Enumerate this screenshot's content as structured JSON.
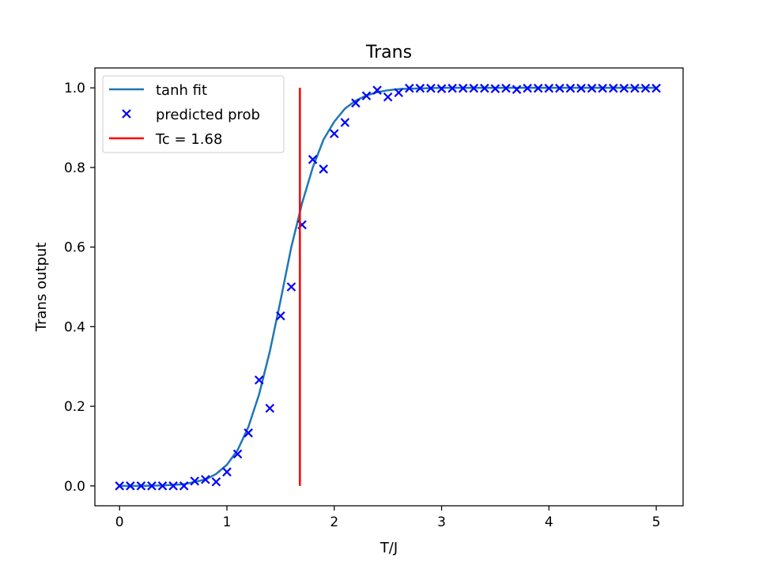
{
  "chart_data": {
    "type": "scatter",
    "title": "Trans",
    "xlabel": "T/J",
    "ylabel": "Trans output",
    "xlim": [
      -0.23,
      5.25
    ],
    "ylim": [
      -0.05,
      1.05
    ],
    "xticks": [
      0,
      1,
      2,
      3,
      4,
      5
    ],
    "xtick_labels": [
      "0",
      "1",
      "2",
      "3",
      "4",
      "5"
    ],
    "yticks": [
      0.0,
      0.2,
      0.4,
      0.6,
      0.8,
      1.0
    ],
    "ytick_labels": [
      "0.0",
      "0.2",
      "0.4",
      "0.6",
      "0.8",
      "1.0"
    ],
    "grid": false,
    "legend_position": "upper-left",
    "series": [
      {
        "name": "predicted prob",
        "kind": "scatter",
        "marker": "x",
        "color": "#0000ff",
        "x": [
          0.0,
          0.1,
          0.2,
          0.3,
          0.4,
          0.5,
          0.6,
          0.7,
          0.8,
          0.9,
          1.0,
          1.1,
          1.2,
          1.3,
          1.4,
          1.5,
          1.6,
          1.7,
          1.8,
          1.9,
          2.0,
          2.1,
          2.2,
          2.3,
          2.4,
          2.5,
          2.6,
          2.7,
          2.8,
          2.9,
          3.0,
          3.1,
          3.2,
          3.3,
          3.4,
          3.5,
          3.6,
          3.7,
          3.8,
          3.9,
          4.0,
          4.1,
          4.2,
          4.3,
          4.4,
          4.5,
          4.6,
          4.7,
          4.8,
          4.9,
          5.0
        ],
        "y": [
          0.0,
          0.0,
          0.0,
          0.0,
          0.0,
          0.0,
          0.0,
          0.012,
          0.016,
          0.01,
          0.035,
          0.08,
          0.133,
          0.266,
          0.195,
          0.427,
          0.5,
          0.656,
          0.82,
          0.796,
          0.885,
          0.913,
          0.962,
          0.98,
          0.994,
          0.977,
          0.988,
          0.999,
          0.999,
          0.999,
          0.998,
          0.999,
          0.999,
          0.999,
          0.999,
          0.998,
          0.999,
          0.996,
          0.999,
          0.999,
          0.999,
          0.999,
          0.999,
          0.999,
          0.999,
          0.999,
          0.999,
          0.999,
          0.999,
          0.999,
          0.999
        ]
      },
      {
        "name": "tanh fit",
        "kind": "line",
        "color": "#1f77b4",
        "x": [
          0.0,
          0.2,
          0.4,
          0.6,
          0.8,
          0.9,
          1.0,
          1.1,
          1.2,
          1.3,
          1.4,
          1.5,
          1.6,
          1.7,
          1.8,
          1.9,
          2.0,
          2.1,
          2.2,
          2.3,
          2.4,
          2.5,
          2.6,
          2.7,
          3.0,
          3.5,
          4.0,
          4.5,
          5.0
        ],
        "y": [
          0.0,
          0.0,
          0.001,
          0.004,
          0.016,
          0.03,
          0.053,
          0.09,
          0.148,
          0.23,
          0.338,
          0.466,
          0.6,
          0.71,
          0.8,
          0.87,
          0.915,
          0.948,
          0.968,
          0.981,
          0.989,
          0.994,
          0.997,
          0.998,
          1.0,
          1.0,
          1.0,
          1.0,
          1.0
        ]
      },
      {
        "name": "Tc = 1.68",
        "kind": "vline",
        "color": "#ff0000",
        "x": 1.68,
        "y_range": [
          0.0,
          1.0
        ]
      }
    ]
  }
}
